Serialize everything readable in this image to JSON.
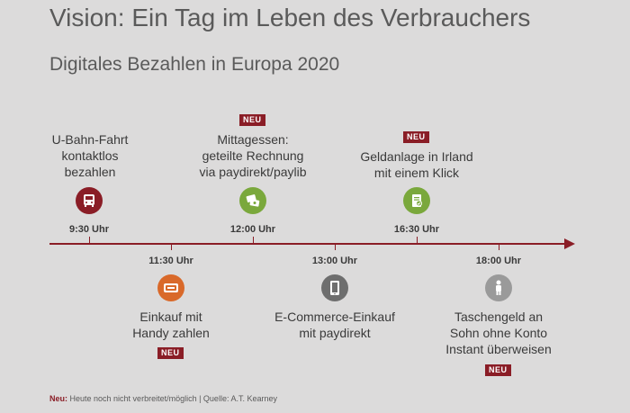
{
  "title": "Vision: Ein Tag im Leben des Verbrauchers",
  "subtitle": "Digitales Bezahlen in Europa 2020",
  "badge_text": "NEU",
  "events": [
    {
      "time": "9:30 Uhr",
      "lines": [
        "U-Bahn-Fahrt",
        "kontaktlos",
        "bezahlen"
      ],
      "icon": "bus-icon",
      "color": "#8a1d26",
      "neu": false,
      "side": "top"
    },
    {
      "time": "11:30 Uhr",
      "lines": [
        "Einkauf mit",
        "Handy zahlen"
      ],
      "icon": "card-icon",
      "color": "#d9692a",
      "neu": true,
      "side": "bottom"
    },
    {
      "time": "12:00 Uhr",
      "lines": [
        "Mittagessen:",
        "geteilte Rechnung",
        "via paydirekt/paylib"
      ],
      "icon": "bill-split-icon",
      "color": "#7aa83c",
      "neu": true,
      "side": "top"
    },
    {
      "time": "13:00 Uhr",
      "lines": [
        "E-Commerce-Einkauf",
        "mit paydirekt"
      ],
      "icon": "tablet-icon",
      "color": "#6e6e6e",
      "neu": false,
      "side": "bottom"
    },
    {
      "time": "16:30 Uhr",
      "lines": [
        "Geldanlage in Irland",
        "mit einem Klick"
      ],
      "icon": "document-check-icon",
      "color": "#7aa83c",
      "neu": true,
      "side": "top"
    },
    {
      "time": "18:00 Uhr",
      "lines": [
        "Taschengeld an",
        "Sohn ohne Konto",
        "Instant überweisen"
      ],
      "icon": "person-icon",
      "color": "#9a9a9a",
      "neu": true,
      "side": "bottom"
    }
  ],
  "footer": {
    "note_label": "Neu:",
    "note_text": "Heute noch nicht verbreitet/möglich | Quelle: A.T. Kearney"
  }
}
